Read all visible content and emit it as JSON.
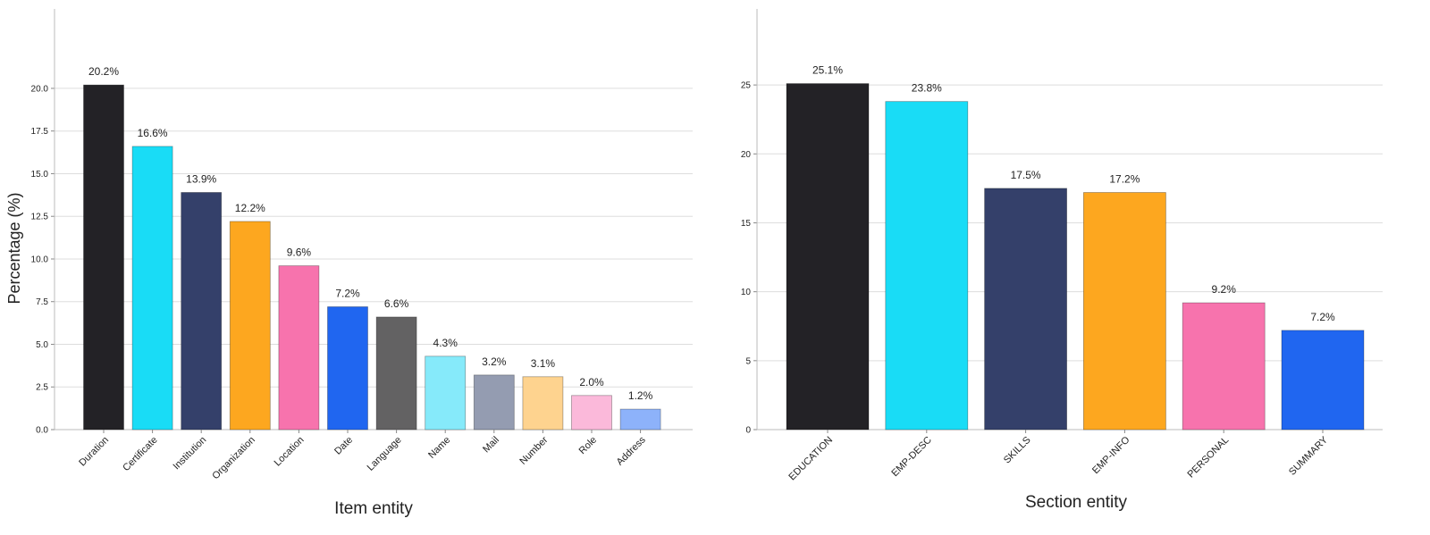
{
  "chart_data": [
    {
      "type": "bar",
      "title": "",
      "xlabel": "Item entity",
      "ylabel": "Percentage (%)",
      "ylim": [
        0,
        22.3
      ],
      "yticks": [
        "0.0",
        "2.5",
        "5.0",
        "7.5",
        "10.0",
        "12.5",
        "15.0",
        "17.5",
        "20.0"
      ],
      "ytick_values": [
        0,
        2.5,
        5,
        7.5,
        10,
        12.5,
        15,
        17.5,
        20
      ],
      "grid": true,
      "categories": [
        "Duration",
        "Certificate",
        "Institution",
        "Organization",
        "Location",
        "Date",
        "Language",
        "Name",
        "Mail",
        "Number",
        "Role",
        "Address"
      ],
      "values": [
        20.2,
        16.6,
        13.9,
        12.2,
        9.6,
        7.2,
        6.6,
        4.3,
        3.2,
        3.1,
        2.0,
        1.2
      ],
      "value_labels": [
        "20.2%",
        "16.6%",
        "13.9%",
        "12.2%",
        "9.6%",
        "7.2%",
        "6.6%",
        "4.3%",
        "3.2%",
        "3.1%",
        "2.0%",
        "1.2%"
      ],
      "colors": [
        "#232226",
        "#19dcf6",
        "#34406a",
        "#fda71f",
        "#f773ad",
        "#2066f0",
        "#636263",
        "#86eafa",
        "#949cb1",
        "#fed38f",
        "#fbb9da",
        "#8db2fa"
      ]
    },
    {
      "type": "bar",
      "title": "",
      "xlabel": "Section entity",
      "ylabel": "",
      "ylim": [
        0,
        27.6
      ],
      "yticks": [
        "0",
        "5",
        "10",
        "15",
        "20",
        "25"
      ],
      "ytick_values": [
        0,
        5,
        10,
        15,
        20,
        25
      ],
      "grid": true,
      "categories": [
        "EDUCATION",
        "EMP-DESC",
        "SKILLS",
        "EMP-INFO",
        "PERSONAL",
        "SUMMARY"
      ],
      "values": [
        25.1,
        23.8,
        17.5,
        17.2,
        9.2,
        7.2
      ],
      "value_labels": [
        "25.1%",
        "23.8%",
        "17.5%",
        "17.2%",
        "9.2%",
        "7.2%"
      ],
      "colors": [
        "#232226",
        "#19dcf6",
        "#34406a",
        "#fda71f",
        "#f773ad",
        "#2066f0"
      ]
    }
  ]
}
